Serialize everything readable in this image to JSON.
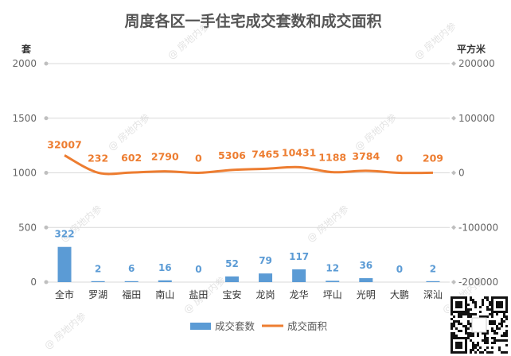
{
  "chart_data": {
    "type": "bar",
    "title": "周度各区一手住宅成交套数和成交面积",
    "categories": [
      "全市",
      "罗湖",
      "福田",
      "南山",
      "盐田",
      "宝安",
      "龙岗",
      "龙华",
      "坪山",
      "光明",
      "大鹏",
      "深汕"
    ],
    "left_axis": {
      "unit": "套",
      "ylim": [
        0,
        2000
      ],
      "ticks": [
        0,
        500,
        1000,
        1500,
        2000
      ]
    },
    "right_axis": {
      "unit": "平方米",
      "ylim": [
        -200000,
        200000
      ],
      "ticks": [
        -200000,
        -100000,
        0,
        100000,
        200000
      ]
    },
    "series": [
      {
        "name": "成交套数",
        "kind": "bar",
        "axis": "left",
        "color": "#5b9bd5",
        "values": [
          322,
          2,
          6,
          16,
          0,
          52,
          79,
          117,
          12,
          36,
          0,
          2
        ]
      },
      {
        "name": "成交面积",
        "kind": "line",
        "axis": "right",
        "color": "#ed7d31",
        "values": [
          32007,
          232,
          602,
          2790,
          0,
          5306,
          7465,
          10431,
          1188,
          3784,
          0,
          209
        ]
      }
    ],
    "legend_position": "bottom",
    "grid": true
  },
  "watermark": {
    "text": "@ 房地内参"
  }
}
